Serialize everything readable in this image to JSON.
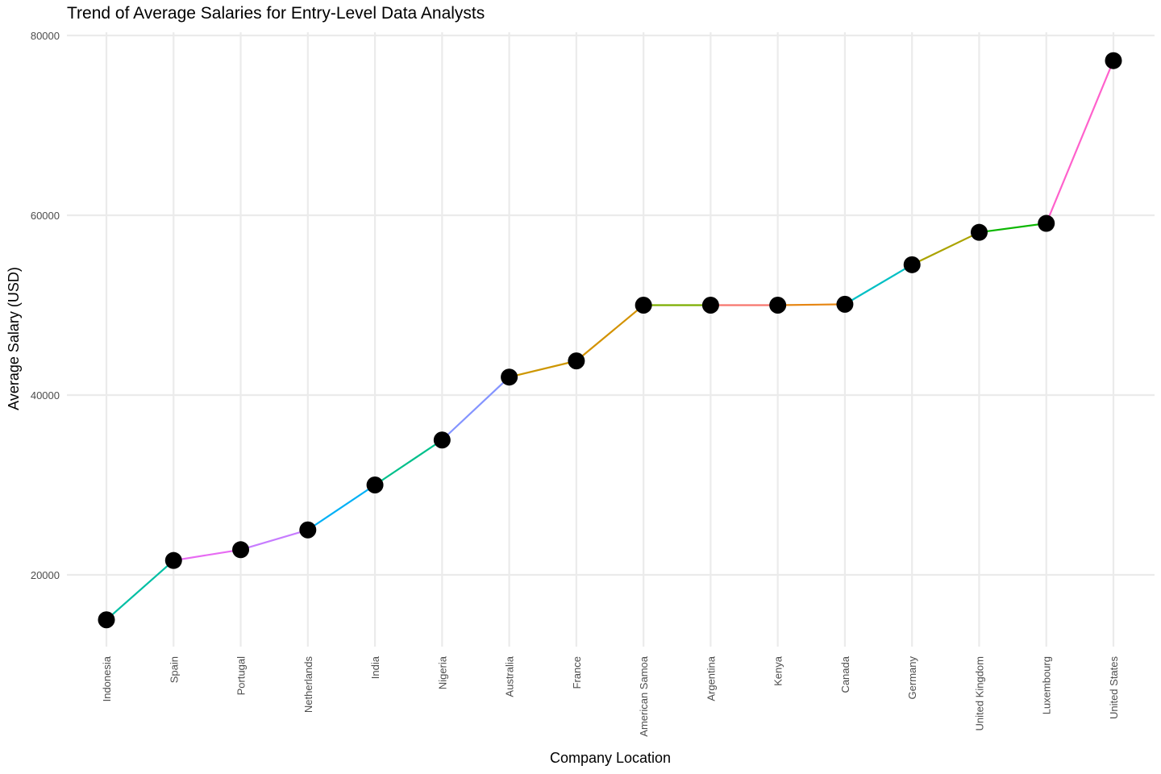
{
  "chart_data": {
    "type": "line",
    "title": "Trend of Average Salaries for Entry-Level Data Analysts",
    "xlabel": "Company Location",
    "ylabel": "Average Salary (USD)",
    "categories": [
      "Indonesia",
      "Spain",
      "Portugal",
      "Netherlands",
      "India",
      "Nigeria",
      "Australia",
      "France",
      "American Samoa",
      "Argentina",
      "Kenya",
      "Canada",
      "Germany",
      "United Kingdom",
      "Luxembourg",
      "United States"
    ],
    "values": [
      15000,
      21600,
      22800,
      25000,
      30000,
      35000,
      42000,
      43800,
      50000,
      50000,
      50000,
      50100,
      54500,
      58100,
      59100,
      77200
    ],
    "ylim": [
      12000,
      80000
    ],
    "yticks": [
      20000,
      40000,
      60000,
      80000
    ],
    "segment_colors": [
      "#00BFA4",
      "#E76BF3",
      "#C77CFF",
      "#00B0F6",
      "#00C08B",
      "#8494FF",
      "#CD9600",
      "#D39200",
      "#7CAE00",
      "#F8766D",
      "#E68613",
      "#00BFC4",
      "#ABA300",
      "#0CB702",
      "#FF61CC",
      "#00A9FF"
    ],
    "point_color": "#000000",
    "grid": true,
    "legend": "none"
  }
}
